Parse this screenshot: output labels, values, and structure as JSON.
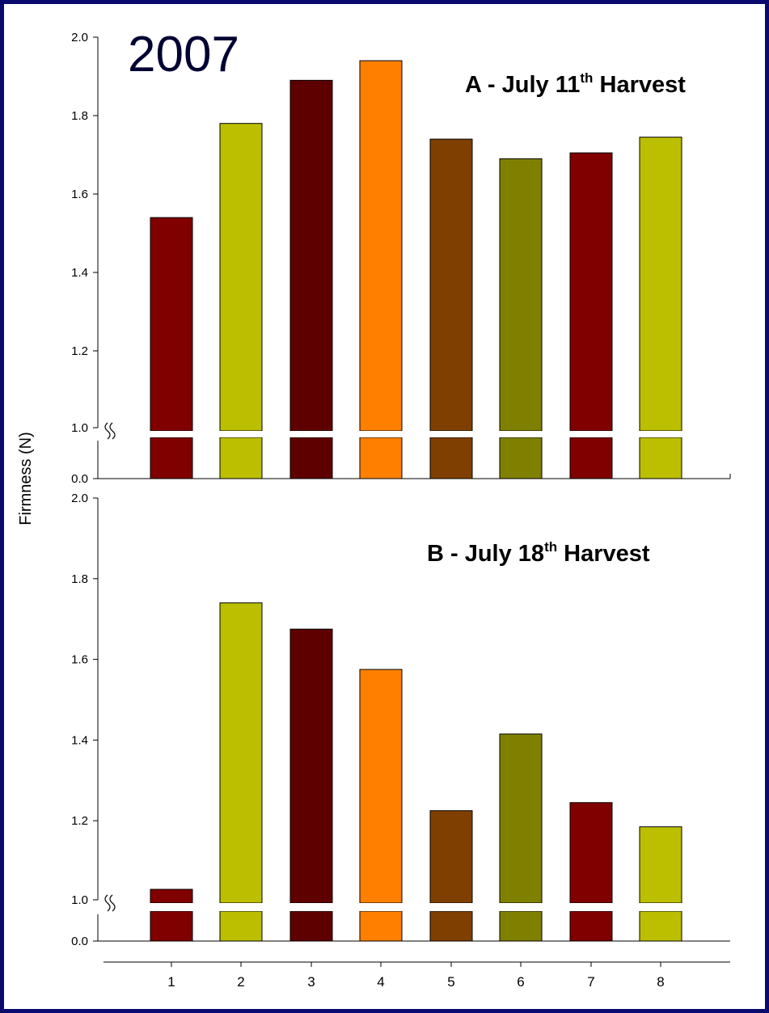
{
  "year_label": "2007",
  "chart_data": {
    "type": "bar",
    "ylabel": "Firmness (N)",
    "xlabel": "",
    "categories": [
      "1",
      "2",
      "3",
      "4",
      "5",
      "6",
      "7",
      "8"
    ],
    "bar_colors": [
      "#800000",
      "#bcbf00",
      "#5e0000",
      "#ff8000",
      "#7f3f00",
      "#808000",
      "#800000",
      "#bcbf00"
    ],
    "axis_break": {
      "lower_tick": "0.0",
      "upper_tick": "1.0"
    },
    "panels": [
      {
        "title_main": "A - July 11",
        "title_sup": "th",
        "title_rest": " Harvest",
        "values": [
          1.54,
          1.78,
          1.89,
          1.94,
          1.74,
          1.69,
          1.705,
          1.745
        ],
        "ylim": [
          1.0,
          2.0
        ],
        "yticks": [
          "1.0",
          "1.2",
          "1.4",
          "1.6",
          "1.8",
          "2.0"
        ]
      },
      {
        "title_main": "B - July 18",
        "title_sup": "th",
        "title_rest": " Harvest",
        "values": [
          1.03,
          1.74,
          1.675,
          1.575,
          1.225,
          1.415,
          1.245,
          1.185
        ],
        "ylim": [
          1.0,
          2.0
        ],
        "yticks": [
          "1.0",
          "1.2",
          "1.4",
          "1.6",
          "1.8",
          "2.0"
        ]
      }
    ]
  }
}
